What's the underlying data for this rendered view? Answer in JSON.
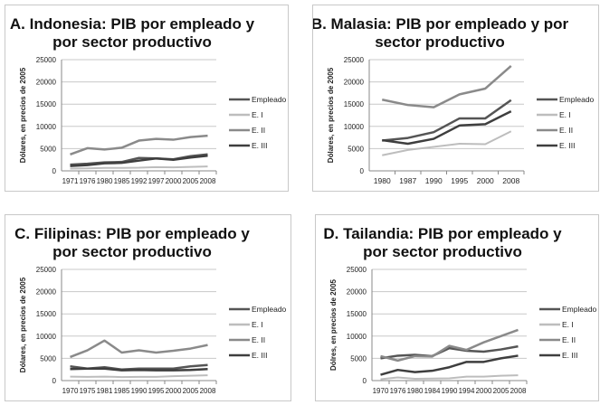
{
  "colors": {
    "Empleado": "#555555",
    "E. I": "#bdbdbd",
    "E. II": "#8a8a8a",
    "E. III": "#3e3e3e"
  },
  "chart_data": [
    {
      "type": "line",
      "title": "A. Indonesia: PIB por empleado y por sector productivo",
      "title_lines": [
        "A. Indonesia: PIB por empleado y",
        "por sector productivo"
      ],
      "ylabel": "Dólares, en precios de 2005",
      "ylim": [
        0,
        25000
      ],
      "yticks": [
        0,
        5000,
        10000,
        15000,
        20000,
        25000
      ],
      "grid": true,
      "legend": "right",
      "categories": [
        "1971",
        "1976",
        "1980",
        "1985",
        "1992",
        "1997",
        "2000",
        "2005",
        "2008"
      ],
      "series": [
        {
          "name": "Empleado",
          "values": [
            1400,
            1600,
            1900,
            2000,
            2900,
            2800,
            2600,
            3300,
            3700
          ]
        },
        {
          "name": "E. I",
          "values": [
            500,
            550,
            650,
            650,
            700,
            850,
            800,
            900,
            1000
          ]
        },
        {
          "name": "E. II",
          "values": [
            3700,
            5100,
            4800,
            5200,
            6800,
            7200,
            7000,
            7600,
            7900
          ]
        },
        {
          "name": "E. III",
          "values": [
            1100,
            1300,
            1700,
            1800,
            2300,
            2800,
            2500,
            3000,
            3400
          ]
        }
      ]
    },
    {
      "type": "line",
      "title": "B. Malasia: PIB por empleado y por sector productivo",
      "title_lines": [
        "B. Malasia: PIB por empleado y por",
        "sector productivo"
      ],
      "ylabel": "Dólares, en precios de 2005",
      "ylim": [
        0,
        25000
      ],
      "yticks": [
        0,
        5000,
        10000,
        15000,
        20000,
        25000
      ],
      "grid": true,
      "legend": "right",
      "categories": [
        "1980",
        "1987",
        "1990",
        "1995",
        "2000",
        "2008"
      ],
      "series": [
        {
          "name": "Empleado",
          "values": [
            6800,
            7400,
            8700,
            11800,
            11800,
            15900
          ]
        },
        {
          "name": "E. I",
          "values": [
            3500,
            4700,
            5400,
            6100,
            6000,
            8900
          ]
        },
        {
          "name": "E. II",
          "values": [
            16000,
            14800,
            14300,
            17200,
            18500,
            23600
          ]
        },
        {
          "name": "E. III",
          "values": [
            6900,
            6100,
            7200,
            10200,
            10500,
            13400
          ]
        }
      ]
    },
    {
      "type": "line",
      "title": "C. Filipinas: PIB por empleado y por sector productivo",
      "title_lines": [
        "C. Filipinas: PIB por empleado y",
        "por sector productivo"
      ],
      "ylabel": "Dólares, en precios de 2005",
      "ylim": [
        0,
        25000
      ],
      "yticks": [
        0,
        5000,
        10000,
        15000,
        20000,
        25000
      ],
      "grid": true,
      "legend": "right",
      "categories": [
        "1970",
        "1975",
        "1981",
        "1985",
        "1990",
        "1995",
        "2000",
        "2005",
        "2008"
      ],
      "series": [
        {
          "name": "Empleado",
          "values": [
            3200,
            2700,
            3000,
            2500,
            2700,
            2700,
            2700,
            3200,
            3500
          ]
        },
        {
          "name": "E. I",
          "values": [
            900,
            850,
            900,
            800,
            850,
            850,
            1000,
            1100,
            1200
          ]
        },
        {
          "name": "E. II",
          "values": [
            5300,
            6800,
            9000,
            6300,
            6800,
            6300,
            6700,
            7200,
            8000
          ]
        },
        {
          "name": "E. III",
          "values": [
            2600,
            2700,
            2700,
            2300,
            2400,
            2300,
            2300,
            2400,
            2600
          ]
        }
      ]
    },
    {
      "type": "line",
      "title": "D. Tailandia: PIB por empleado y por sector productivo",
      "title_lines": [
        "D. Tailandia: PIB por empleado y",
        "por sector productivo"
      ],
      "ylabel": "Dólres, en precios de 2005",
      "ylim": [
        0,
        25000
      ],
      "yticks": [
        0,
        5000,
        10000,
        15000,
        20000,
        25000
      ],
      "grid": true,
      "legend": "right",
      "categories": [
        "1970",
        "1976",
        "1980",
        "1984",
        "1990",
        "1994",
        "2000",
        "2005",
        "2008"
      ],
      "series": [
        {
          "name": "Empleado",
          "values": [
            5000,
            5600,
            5800,
            5500,
            7300,
            6700,
            6500,
            7000,
            7700
          ]
        },
        {
          "name": "E. I",
          "values": [
            300,
            700,
            400,
            450,
            500,
            900,
            900,
            1100,
            1200
          ]
        },
        {
          "name": "E. II",
          "values": [
            5500,
            4500,
            5500,
            5400,
            7800,
            6900,
            8600,
            10000,
            11400
          ]
        },
        {
          "name": "E. III",
          "values": [
            1300,
            2400,
            1900,
            2200,
            3000,
            4200,
            4200,
            5000,
            5600
          ]
        }
      ]
    }
  ]
}
